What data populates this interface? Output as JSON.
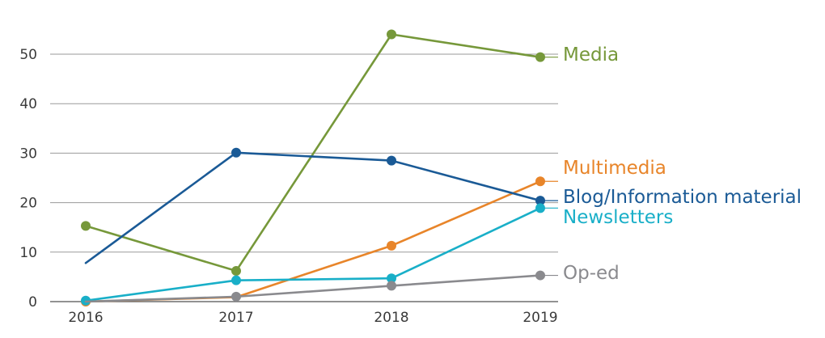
{
  "chart_data": {
    "type": "line",
    "x": [
      "2016",
      "2017",
      "2018",
      "2019"
    ],
    "ylim": [
      0,
      50
    ],
    "yticks": [
      0,
      10,
      20,
      30,
      40,
      50
    ],
    "grid": "horizontal",
    "legend": "inline labels at right",
    "series": [
      {
        "name": "Media",
        "color": "#76983a",
        "values": [
          15.3,
          6.2,
          54.0,
          49.4
        ],
        "markers": [
          true,
          true,
          true,
          true
        ]
      },
      {
        "name": "Multimedia",
        "color": "#e8852a",
        "values": [
          0,
          0.9,
          11.3,
          24.3
        ],
        "markers": [
          true,
          false,
          true,
          true
        ]
      },
      {
        "name": "Blog/Information material",
        "color": "#1a5a96",
        "values": [
          7.8,
          30.1,
          28.5,
          20.4
        ],
        "markers": [
          false,
          true,
          true,
          true
        ]
      },
      {
        "name": "Newsletters",
        "color": "#19afc8",
        "values": [
          0.2,
          4.3,
          4.7,
          18.9
        ],
        "markers": [
          true,
          true,
          true,
          true
        ]
      },
      {
        "name": "Op-ed",
        "color": "#8a8a8e",
        "values": [
          0,
          1.0,
          3.2,
          5.3
        ],
        "markers": [
          false,
          true,
          true,
          true
        ]
      }
    ]
  }
}
